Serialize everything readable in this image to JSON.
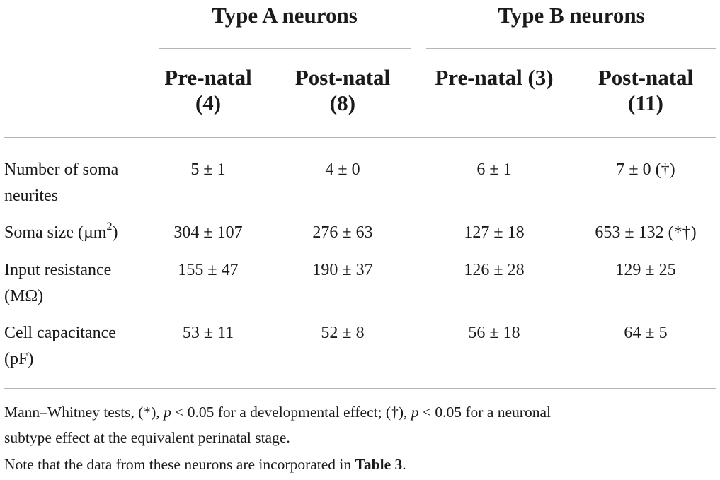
{
  "groups": {
    "type_a": "Type A neurons",
    "type_b": "Type B neurons"
  },
  "columns": [
    {
      "line1": "Pre-natal",
      "line2": "(4)"
    },
    {
      "line1": "Post-natal",
      "line2": "(8)"
    },
    {
      "line1": "Pre-natal (3)",
      "line2": ""
    },
    {
      "line1": "Post-natal",
      "line2": "(11)"
    }
  ],
  "rows": [
    {
      "label_line1": "Number of soma",
      "label_line2": "neurites",
      "values": [
        "5 ± 1",
        "4 ± 0",
        "6 ± 1",
        "7 ± 0 (†)"
      ]
    },
    {
      "label_pre": "Soma size (µm",
      "label_sup": "2",
      "label_post": ")",
      "values": [
        "304 ± 107",
        "276 ± 63",
        "127 ± 18",
        "653 ± 132 (*†)"
      ]
    },
    {
      "label_line1": "Input resistance",
      "label_line2": "(MΩ)",
      "values": [
        "155 ± 47",
        "190 ± 37",
        "126 ± 28",
        "129 ± 25"
      ]
    },
    {
      "label_line1": "Cell capacitance",
      "label_line2": "(pF)",
      "values": [
        "53 ± 11",
        "52 ± 8",
        "56 ± 18",
        "64 ± 5"
      ]
    }
  ],
  "footnote": {
    "line1_a": "Mann–Whitney tests, (*), ",
    "p1": "p",
    "line1_b": " < 0.05 for a developmental effect; (†), ",
    "p2": "p",
    "line1_c": " < 0.05 for a neuronal",
    "line2": "subtype effect at the equivalent perinatal stage.",
    "line3_a": "Note that the data from these neurons are incorporated in ",
    "line3_b": "Table 3",
    "line3_c": "."
  }
}
